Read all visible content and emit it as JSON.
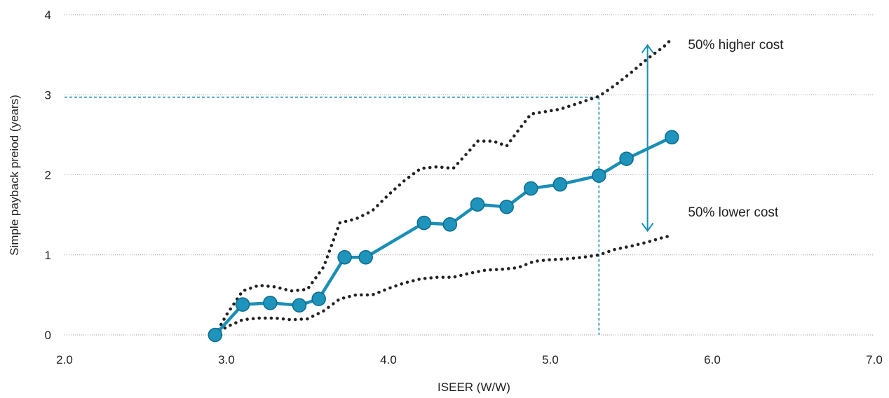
{
  "chart_data": {
    "type": "line",
    "title": "",
    "xlabel": "ISEER (W/W)",
    "ylabel": "Simple payback preiod (years)",
    "xlim": [
      2.0,
      7.0
    ],
    "ylim": [
      0,
      4
    ],
    "x_ticks": [
      "2.0",
      "3.0",
      "4.0",
      "5.0",
      "6.0",
      "7.0"
    ],
    "y_ticks": [
      "0",
      "1",
      "2",
      "3",
      "4"
    ],
    "grid": "horizontal dotted",
    "colors": {
      "main": "#1a8fb5",
      "marker_fill": "#1e94bc",
      "marker_edge": "#0f6f8f",
      "band": "#222222",
      "reference": "#1a8fb5",
      "grid": "#9a9a9a"
    },
    "series": [
      {
        "x": [
          2.93,
          3.1,
          3.27,
          3.45,
          3.57,
          3.73,
          3.86,
          4.22,
          4.38,
          4.55,
          4.73,
          4.88,
          5.06,
          5.3,
          5.47,
          5.75
        ],
        "values": [
          0.0,
          0.38,
          0.4,
          0.37,
          0.45,
          0.97,
          0.97,
          1.4,
          1.38,
          1.63,
          1.6,
          1.83,
          1.88,
          1.99,
          2.2,
          2.47
        ]
      },
      {
        "name": "50% higher cost",
        "x": [
          2.93,
          3.0,
          3.1,
          3.2,
          3.3,
          3.4,
          3.5,
          3.6,
          3.7,
          3.8,
          3.9,
          4.0,
          4.1,
          4.2,
          4.3,
          4.4,
          4.5,
          4.55,
          4.65,
          4.73,
          4.8,
          4.88,
          5.0,
          5.06,
          5.15,
          5.3,
          5.4,
          5.5,
          5.6,
          5.7,
          5.75
        ],
        "values": [
          0.0,
          0.25,
          0.55,
          0.62,
          0.6,
          0.55,
          0.57,
          0.85,
          1.4,
          1.45,
          1.55,
          1.75,
          1.93,
          2.08,
          2.1,
          2.08,
          2.3,
          2.42,
          2.42,
          2.36,
          2.55,
          2.76,
          2.8,
          2.82,
          2.88,
          2.98,
          3.12,
          3.28,
          3.45,
          3.6,
          3.7
        ]
      },
      {
        "name": "50% lower cost",
        "x": [
          2.93,
          3.0,
          3.1,
          3.2,
          3.3,
          3.4,
          3.5,
          3.6,
          3.7,
          3.8,
          3.9,
          4.0,
          4.1,
          4.2,
          4.3,
          4.4,
          4.5,
          4.6,
          4.7,
          4.8,
          4.9,
          5.0,
          5.1,
          5.2,
          5.3,
          5.4,
          5.5,
          5.6,
          5.7,
          5.75
        ],
        "values": [
          0.0,
          0.1,
          0.19,
          0.21,
          0.21,
          0.19,
          0.2,
          0.3,
          0.45,
          0.5,
          0.5,
          0.58,
          0.65,
          0.7,
          0.72,
          0.72,
          0.77,
          0.81,
          0.82,
          0.84,
          0.92,
          0.94,
          0.95,
          0.97,
          1.0,
          1.07,
          1.11,
          1.16,
          1.22,
          1.24
        ]
      }
    ],
    "reference_lines": {
      "y": 2.97,
      "x": 5.3
    },
    "range_arrow": {
      "x": 5.6,
      "y_top": 3.62,
      "y_bottom": 1.3
    },
    "annotations": [
      {
        "text": "50% higher cost",
        "x": 5.85,
        "y": 3.57
      },
      {
        "text": "50% lower cost",
        "x": 5.85,
        "y": 1.48
      }
    ]
  }
}
